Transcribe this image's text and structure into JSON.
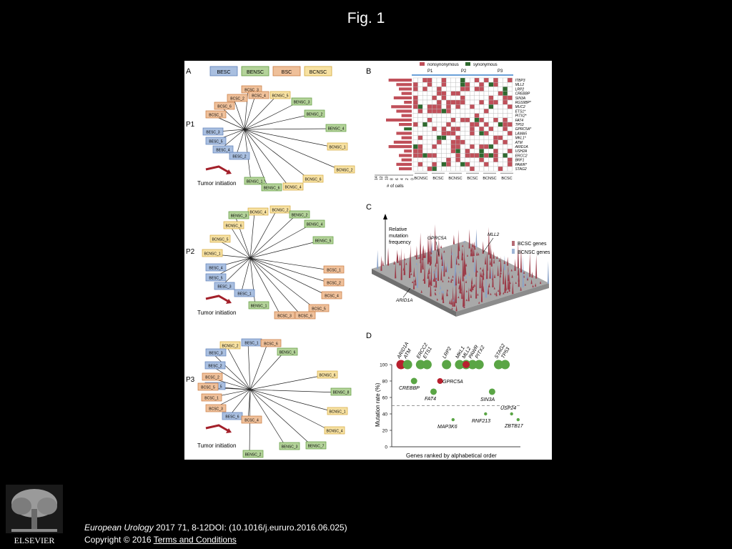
{
  "slide": {
    "title": "Fig. 1",
    "citation_journal": "European Urology",
    "citation_details": " 2017 71, 8-12DOI: (10.1016/j.eururo.2016.06.025)",
    "copyright": "Copyright © 2016 ",
    "terms_link": " Terms and Conditions",
    "publisher": "ELSEVIER"
  },
  "colors": {
    "besc": "#a9bfe0",
    "besc_border": "#5d7fb8",
    "bensc": "#b4d39a",
    "bensc_border": "#5f9a3c",
    "bsc": "#efc09a",
    "bsc_border": "#c87a3f",
    "bnsc": "#f7e1a2",
    "bnsc_border": "#d3a93b",
    "nonsyn": "#c0505a",
    "syn": "#2f6a2f",
    "arrow": "#a3202a",
    "dot_green": "#5aa545",
    "dot_red": "#b8202e"
  },
  "panel_a": {
    "label": "A",
    "legend": [
      "BESC",
      "BENSC",
      "BSC",
      "BCNSC"
    ],
    "trees": [
      {
        "label": "P1",
        "initiation": "Tumor initiation",
        "nodes": [
          {
            "name": "BCSC_3",
            "type": "bsc"
          },
          {
            "name": "BCSC_2",
            "type": "bsc"
          },
          {
            "name": "BCSC_4",
            "type": "bsc"
          },
          {
            "name": "BCNSC_5",
            "type": "bnsc"
          },
          {
            "name": "BENSC_3",
            "type": "bensc"
          },
          {
            "name": "BCSC_6",
            "type": "bsc"
          },
          {
            "name": "BCSC_1",
            "type": "bsc"
          },
          {
            "name": "BENSC_2",
            "type": "bensc"
          },
          {
            "name": "BENSC_4",
            "type": "bensc"
          },
          {
            "name": "BESC_3",
            "type": "besc"
          },
          {
            "name": "BESC_5",
            "type": "besc"
          },
          {
            "name": "BESC_4",
            "type": "besc"
          },
          {
            "name": "BCNSC_1",
            "type": "bnsc"
          },
          {
            "name": "BESC_2",
            "type": "besc"
          },
          {
            "name": "BCNSC_2",
            "type": "bnsc"
          },
          {
            "name": "BENSC_1",
            "type": "bensc"
          },
          {
            "name": "BCNSC_6",
            "type": "bnsc"
          },
          {
            "name": "BENSC_6",
            "type": "bensc"
          },
          {
            "name": "BCNSC_4",
            "type": "bnsc"
          }
        ]
      },
      {
        "label": "P2",
        "initiation": "Tumor initiation",
        "nodes": [
          {
            "name": "BCNSC_4",
            "type": "bnsc"
          },
          {
            "name": "BCNSC_2",
            "type": "bnsc"
          },
          {
            "name": "BENSC_3",
            "type": "bensc"
          },
          {
            "name": "BENSC_2",
            "type": "bensc"
          },
          {
            "name": "BCNSC_6",
            "type": "bnsc"
          },
          {
            "name": "BENSC_4",
            "type": "bensc"
          },
          {
            "name": "BCNSC_5",
            "type": "bnsc"
          },
          {
            "name": "BENSC_5",
            "type": "bensc"
          },
          {
            "name": "BCNSC_1",
            "type": "bnsc"
          },
          {
            "name": "BESC_4",
            "type": "besc"
          },
          {
            "name": "BCSC_1",
            "type": "bsc"
          },
          {
            "name": "BESC_5",
            "type": "besc"
          },
          {
            "name": "BCSC_2",
            "type": "bsc"
          },
          {
            "name": "BESC_3",
            "type": "besc"
          },
          {
            "name": "BCSC_4",
            "type": "bsc"
          },
          {
            "name": "BESC_1",
            "type": "besc"
          },
          {
            "name": "BENSC_1",
            "type": "bensc"
          },
          {
            "name": "BCSC_5",
            "type": "bsc"
          },
          {
            "name": "BCSC_3",
            "type": "bsc"
          },
          {
            "name": "BCSC_6",
            "type": "bsc"
          }
        ]
      },
      {
        "label": "P3",
        "initiation": "Tumor initiation",
        "nodes": [
          {
            "name": "BESC_1",
            "type": "besc"
          },
          {
            "name": "BCNSC_2",
            "type": "bnsc"
          },
          {
            "name": "BCSC_6",
            "type": "bsc"
          },
          {
            "name": "BESC_3",
            "type": "besc"
          },
          {
            "name": "BENSC_6",
            "type": "bensc"
          },
          {
            "name": "BESC_2",
            "type": "besc"
          },
          {
            "name": "BESC_5",
            "type": "besc"
          },
          {
            "name": "BCSC_2",
            "type": "bsc"
          },
          {
            "name": "BCNSC_6",
            "type": "bnsc"
          },
          {
            "name": "BCSC_5",
            "type": "bsc"
          },
          {
            "name": "BENSC_8",
            "type": "bensc"
          },
          {
            "name": "BCSC_1",
            "type": "bsc"
          },
          {
            "name": "BCNSC_1",
            "type": "bnsc"
          },
          {
            "name": "BCSC_3",
            "type": "bsc"
          },
          {
            "name": "BESC_6",
            "type": "besc"
          },
          {
            "name": "BCSC_4",
            "type": "bsc"
          },
          {
            "name": "BCNSC_4",
            "type": "bnsc"
          },
          {
            "name": "BENSC_3",
            "type": "bensc"
          },
          {
            "name": "BENSC_7",
            "type": "bensc"
          },
          {
            "name": "BENSC_2",
            "type": "bensc"
          }
        ]
      }
    ]
  },
  "panel_b": {
    "label": "B",
    "legend": [
      "nonsynonymous",
      "synonymous"
    ],
    "patients": [
      "P1",
      "P2",
      "P3"
    ],
    "genes": [
      "ITBP3",
      "MLL2",
      "LRP2",
      "CREBBP",
      "SIN3A",
      "RGS9BP*",
      "MUC2",
      "ETS1*",
      "PITX2*",
      "FAT4",
      "TP53",
      "GPRC5A*",
      "LAMA5",
      "MKL1*",
      "ATM",
      "ARID1A",
      "USH2A",
      "ERCC2",
      "BRF1",
      "PAWR*",
      "STAG2"
    ],
    "col_groups": [
      "BCNSC",
      "BCSC",
      "BCNSC",
      "BCSC",
      "BCNSC",
      "BCSC"
    ],
    "xaxis_label": "# of cells",
    "xaxis_ticks": [
      "14",
      "12",
      "10",
      "8",
      "6",
      "4",
      "2",
      "0"
    ],
    "cell_counts": [
      9,
      6,
      5,
      4,
      7,
      3,
      8,
      6,
      4,
      10,
      5,
      3,
      6,
      4,
      7,
      9,
      3,
      5,
      4,
      6,
      5
    ]
  },
  "panel_c": {
    "label": "C",
    "zlabel": "Relative mutation frequency",
    "annotations": [
      "GPRC5A",
      "MLL2",
      "ARID1A"
    ],
    "legend": [
      "BCSC genes",
      "BCNSC genes"
    ]
  },
  "panel_d": {
    "label": "D",
    "ylabel": "Mutation rate (%)",
    "xlabel": "Genes ranked by alphabetical order",
    "y_ticks": [
      "0",
      "20",
      "40",
      "60",
      "80",
      "100"
    ],
    "threshold": 50,
    "top_genes": [
      "ARID1A",
      "ATM",
      "ERCC2",
      "ETS1",
      "LRP2",
      "MKL1",
      "MLL2",
      "PAWR",
      "PITX2",
      "STAG2",
      "TP53"
    ],
    "low_labels": [
      "CREBBP",
      "GPRC5A",
      "FAT4",
      "SIN3A",
      "USP24",
      "MAP3K6",
      "RNF213",
      "ZBTB17"
    ]
  },
  "chart_data": {
    "type": "scatter",
    "title": "",
    "xlabel": "Genes ranked by alphabetical order",
    "ylabel": "Mutation rate (%)",
    "ylim": [
      0,
      100
    ],
    "series": [
      {
        "name": "BCSC genes",
        "points": [
          {
            "gene": "ARID1A",
            "rank": 1,
            "y": 100
          },
          {
            "gene": "ATM",
            "rank": 2,
            "y": 100
          },
          {
            "gene": "CREBBP",
            "rank": 3,
            "y": 80
          },
          {
            "gene": "ERCC2",
            "rank": 4,
            "y": 100
          },
          {
            "gene": "ETS1",
            "rank": 5,
            "y": 100
          },
          {
            "gene": "FAT4",
            "rank": 6,
            "y": 67
          },
          {
            "gene": "LRP2",
            "rank": 8,
            "y": 100
          },
          {
            "gene": "MAP3K6",
            "rank": 9,
            "y": 33
          },
          {
            "gene": "MKL1",
            "rank": 10,
            "y": 100
          },
          {
            "gene": "MLL2",
            "rank": 11,
            "y": 100
          },
          {
            "gene": "PAWR",
            "rank": 12,
            "y": 100
          },
          {
            "gene": "PITX2",
            "rank": 13,
            "y": 100
          },
          {
            "gene": "RNF213",
            "rank": 14,
            "y": 40
          },
          {
            "gene": "SIN3A",
            "rank": 15,
            "y": 67
          },
          {
            "gene": "STAG2",
            "rank": 16,
            "y": 100
          },
          {
            "gene": "TP53",
            "rank": 17,
            "y": 100
          },
          {
            "gene": "USP24",
            "rank": 18,
            "y": 40
          },
          {
            "gene": "ZBTB17",
            "rank": 19,
            "y": 33
          }
        ]
      },
      {
        "name": "Highlighted",
        "points": [
          {
            "gene": "ARID1A",
            "rank": 1,
            "y": 100
          },
          {
            "gene": "GPRC5A",
            "rank": 7,
            "y": 80
          },
          {
            "gene": "MLL2",
            "rank": 11,
            "y": 100
          }
        ]
      }
    ]
  }
}
